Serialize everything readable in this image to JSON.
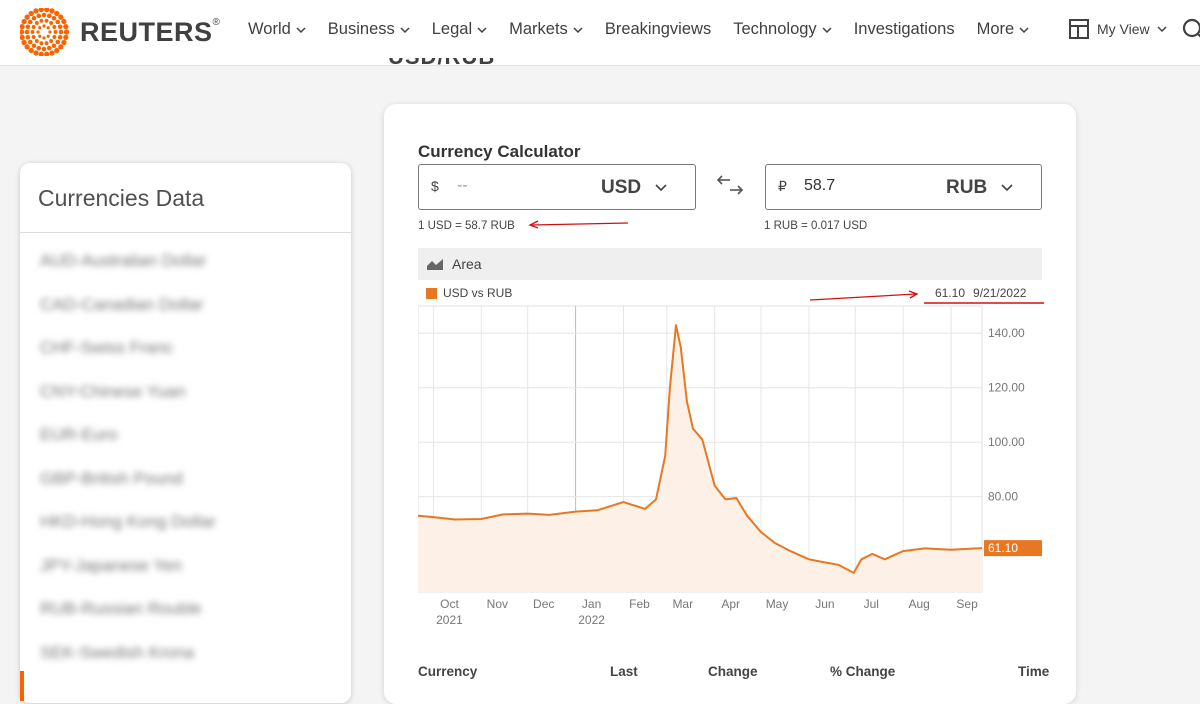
{
  "header": {
    "brand": "REUTERS",
    "brand_mark": "®",
    "nav": [
      {
        "label": "World",
        "dropdown": true
      },
      {
        "label": "Business",
        "dropdown": true
      },
      {
        "label": "Legal",
        "dropdown": true
      },
      {
        "label": "Markets",
        "dropdown": true
      },
      {
        "label": "Breakingviews",
        "dropdown": false
      },
      {
        "label": "Technology",
        "dropdown": true
      },
      {
        "label": "Investigations",
        "dropdown": false
      },
      {
        "label": "More",
        "dropdown": true
      }
    ],
    "my_view": "My View"
  },
  "page_heading_partial": "USD/RUB",
  "sidebar": {
    "title": "Currencies Data",
    "items": [
      {
        "label": "AUD-Australian Dollar"
      },
      {
        "label": "CAD-Canadian Dollar"
      },
      {
        "label": "CHF-Swiss Franc"
      },
      {
        "label": "CNY-Chinese Yuan"
      },
      {
        "label": "EUR-Euro"
      },
      {
        "label": "GBP-British Pound"
      },
      {
        "label": "HKD-Hong Kong Dollar"
      },
      {
        "label": "JPY-Japanese Yen"
      },
      {
        "label": "RUB-Russian Rouble"
      },
      {
        "label": "SEK-Swedish Krona"
      }
    ]
  },
  "calculator": {
    "title": "Currency Calculator",
    "from": {
      "symbol": "$",
      "value": "",
      "placeholder": "--",
      "code": "USD",
      "rate": "1 USD = 58.7 RUB"
    },
    "to": {
      "symbol": "₽",
      "value": "58.7",
      "placeholder": "",
      "code": "RUB",
      "rate": "1 RUB = 0.017 USD"
    }
  },
  "chart_toolbar": {
    "label": "Area"
  },
  "chart_data": {
    "type": "area",
    "series": [
      {
        "name": "USD vs RUB",
        "x": [
          "2021-09-21",
          "2021-10-01",
          "2021-10-15",
          "2021-11-01",
          "2021-11-15",
          "2021-12-01",
          "2021-12-15",
          "2022-01-01",
          "2022-01-15",
          "2022-02-01",
          "2022-02-15",
          "2022-02-22",
          "2022-02-28",
          "2022-03-03",
          "2022-03-07",
          "2022-03-10",
          "2022-03-14",
          "2022-03-18",
          "2022-03-24",
          "2022-04-01",
          "2022-04-08",
          "2022-04-15",
          "2022-04-22",
          "2022-05-01",
          "2022-05-10",
          "2022-05-20",
          "2022-06-01",
          "2022-06-10",
          "2022-06-20",
          "2022-06-30",
          "2022-07-05",
          "2022-07-12",
          "2022-07-20",
          "2022-08-01",
          "2022-08-15",
          "2022-09-01",
          "2022-09-10",
          "2022-09-21"
        ],
        "values": [
          73.0,
          72.5,
          71.6,
          71.8,
          73.5,
          73.8,
          73.3,
          74.5,
          75.0,
          78.0,
          75.5,
          79.0,
          95.0,
          120.0,
          143.0,
          135.0,
          115.0,
          105.0,
          101.0,
          84.0,
          79.0,
          79.5,
          73.0,
          67.0,
          63.0,
          60.0,
          57.0,
          56.0,
          55.0,
          52.0,
          57.0,
          59.0,
          57.0,
          60.0,
          61.0,
          60.5,
          60.8,
          61.1
        ]
      }
    ],
    "latest": {
      "value": "61.10",
      "date": "9/21/2022"
    },
    "x_ticks": [
      {
        "label": "Oct",
        "year": "2021"
      },
      {
        "label": "Nov",
        "year": ""
      },
      {
        "label": "Dec",
        "year": ""
      },
      {
        "label": "Jan",
        "year": "2022"
      },
      {
        "label": "Feb",
        "year": ""
      },
      {
        "label": "Mar",
        "year": ""
      },
      {
        "label": "Apr",
        "year": ""
      },
      {
        "label": "May",
        "year": ""
      },
      {
        "label": "Jun",
        "year": ""
      },
      {
        "label": "Jul",
        "year": ""
      },
      {
        "label": "Aug",
        "year": ""
      },
      {
        "label": "Sep",
        "year": ""
      }
    ],
    "y_ticks": [
      "140.00",
      "120.00",
      "100.00",
      "80.00"
    ],
    "ylim": [
      45,
      150
    ],
    "grid": true,
    "colors": {
      "line": "#e87722",
      "fill": "#fdf0e6",
      "badge": "#e87722"
    }
  },
  "table": {
    "headers": [
      "Currency",
      "Last",
      "Change",
      "% Change",
      "Time"
    ]
  }
}
